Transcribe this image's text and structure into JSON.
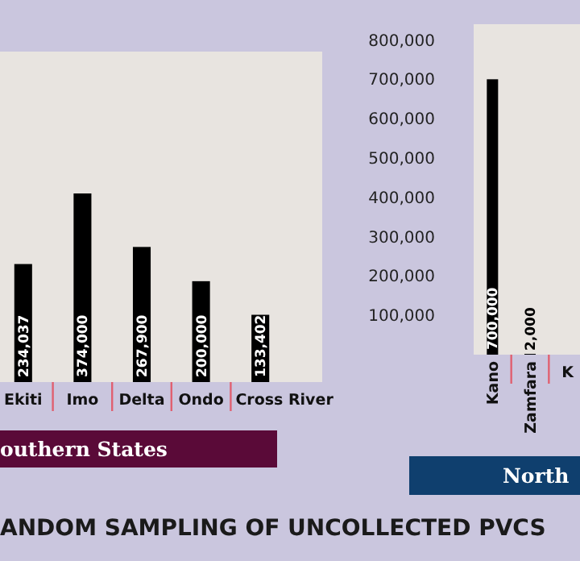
{
  "chart_data": [
    {
      "type": "bar",
      "title": "ANDOM SAMPLING OF UNCOLLECTED PVCS",
      "subtitle": "outhern States",
      "categories": [
        "Ekiti",
        "Imo",
        "Delta",
        "Ondo",
        "Cross River"
      ],
      "values": [
        234037,
        374000,
        267900,
        200000,
        133402
      ],
      "value_labels": [
        "234,037",
        "374,000",
        "267,900",
        "200,000",
        "133,402"
      ],
      "color": "#000000",
      "tick_labels": "x"
    },
    {
      "type": "bar",
      "subtitle": "North",
      "categories": [
        "Kano",
        "Zamfara",
        "K"
      ],
      "values": [
        700000,
        2000,
        null
      ],
      "value_labels": [
        "700,000",
        "2,000",
        null
      ],
      "color": "#000000",
      "ylim": [
        0,
        840000
      ],
      "yticks": [
        {
          "value": 100000,
          "label": "100,000"
        },
        {
          "value": 200000,
          "label": "200,000"
        },
        {
          "value": 300000,
          "label": "300,000"
        },
        {
          "value": 400000,
          "label": "400,000"
        },
        {
          "value": 500000,
          "label": "500,000"
        },
        {
          "value": 600000,
          "label": "600,000"
        },
        {
          "value": 700000,
          "label": "700,000"
        },
        {
          "value": 800000,
          "label": "800,000"
        }
      ]
    }
  ]
}
